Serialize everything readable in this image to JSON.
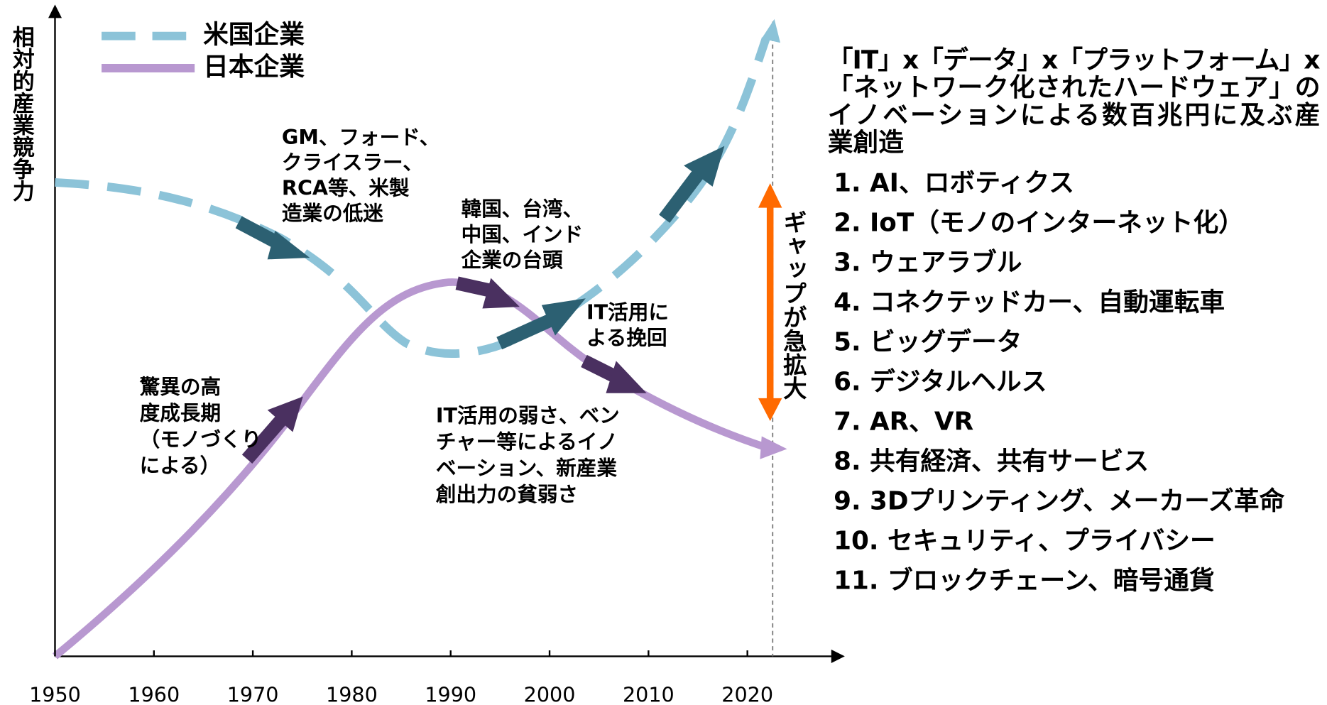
{
  "y_axis_label": "相対的産業競争力",
  "legend": [
    "米国企業",
    "日本企業"
  ],
  "x_axis": {
    "xlim": [
      1950,
      2030
    ],
    "xticks": [
      1950,
      1960,
      1970,
      1980,
      1990,
      2000,
      2010,
      2020
    ]
  },
  "annotations": [
    [
      "GM、フォード、",
      "クライスラー、",
      "RCA等、米製",
      "造業の低迷"
    ],
    [
      "韓国、台湾、",
      "中国、インド",
      "企業の台頭"
    ],
    [
      "IT活用に",
      "よる挽回"
    ],
    [
      "驚異の高",
      "度成長期",
      "（モノづくり",
      "による）"
    ],
    [
      "IT活用の弱さ、ベン",
      "チャー等によるイノ",
      "ベーション、新産業",
      "創出力の貧弱さ"
    ]
  ],
  "gap_label": "ギャップが急拡大",
  "headline": [
    "「IT」x「データ」x「プラットフォーム」x",
    "「ネットワーク化されたハードウェア」の",
    "イノベーションによる数百兆円に及ぶ産",
    "業創造"
  ],
  "list": [
    "1. AI、ロボティクス",
    "2. IoT（モノのインターネット化）",
    "3. ウェアラブル",
    "4. コネクテッドカー、自動運転車",
    "5. ビッグデータ",
    "6. デジタルヘルス",
    "7.  AR、VR",
    "8. 共有経済、共有サービス",
    "9. 3Dプリンティング、メーカーズ革命",
    "10. セキュリティ、プライバシー",
    "11. ブロックチェーン、暗号通貨"
  ]
}
